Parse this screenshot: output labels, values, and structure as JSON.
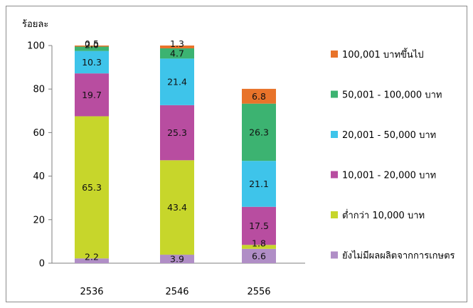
{
  "chart_data": {
    "type": "bar",
    "stacked": true,
    "unit_label": "ร้อยละ",
    "categories": [
      "2536",
      "2546",
      "2556"
    ],
    "ylim": [
      0,
      100
    ],
    "yticks": [
      0,
      20,
      40,
      60,
      80,
      100
    ],
    "grid": false,
    "legend_position": "right",
    "series": [
      {
        "name": "ยังไม่มีผลผลิตจากการเกษตร",
        "color": "#b08ec6",
        "values": [
          2.2,
          3.9,
          6.6
        ]
      },
      {
        "name": "ต่ำกว่า 10,000 บาท",
        "color": "#c7d62b",
        "values": [
          65.3,
          43.4,
          1.8
        ]
      },
      {
        "name": "10,001 - 20,000 บาท",
        "color": "#b84da0",
        "values": [
          19.7,
          25.3,
          17.5
        ]
      },
      {
        "name": "20,001 - 50,000 บาท",
        "color": "#3ec4ea",
        "values": [
          10.3,
          21.4,
          21.1
        ]
      },
      {
        "name": "50,001 - 100,000 บาท",
        "color": "#3cb371",
        "values": [
          2.0,
          4.7,
          26.3
        ]
      },
      {
        "name": "100,001 บาทขึ้นไป",
        "color": "#e8732a",
        "values": [
          0.5,
          1.3,
          6.8
        ]
      }
    ]
  }
}
